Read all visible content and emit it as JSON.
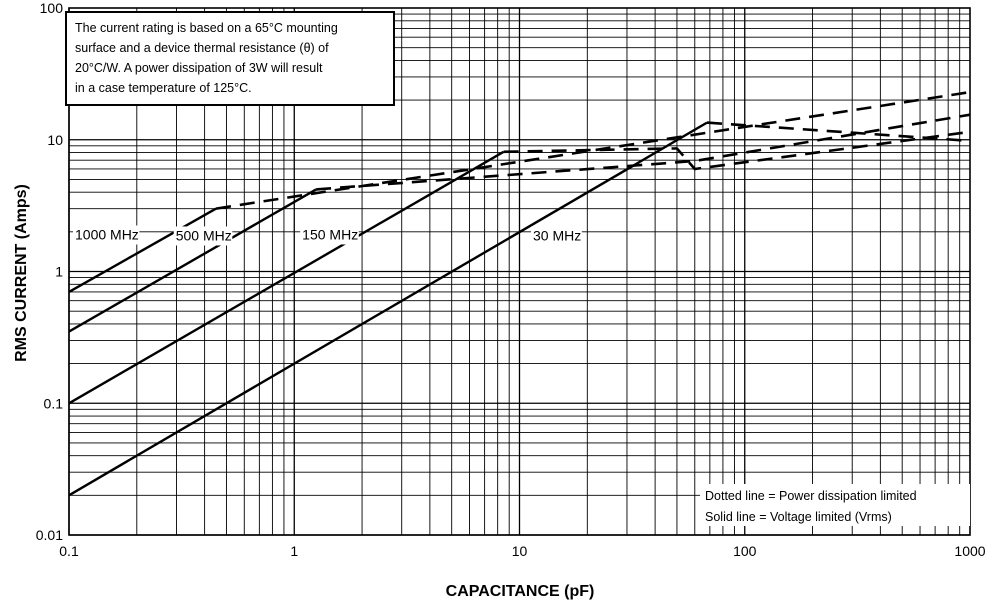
{
  "chart_data": {
    "type": "line",
    "xscale": "log",
    "yscale": "log",
    "xlim": [
      0.1,
      1000
    ],
    "ylim": [
      0.01,
      100
    ],
    "xlabel": "CAPACITANCE (pF)",
    "ylabel": "RMS CURRENT (Amps)",
    "x_tick_labels": [
      "0.1",
      "1",
      "10",
      "100",
      "1000"
    ],
    "y_tick_labels": [
      "0.01",
      "0.1",
      "1",
      "10",
      "100"
    ],
    "x_ticks": [
      0.1,
      1,
      10,
      100,
      1000
    ],
    "y_ticks": [
      0.01,
      0.1,
      1,
      10,
      100
    ],
    "grid": true,
    "annotation_lines": [
      "The current rating is based on a 65°C mounting",
      "surface and a device thermal resistance (θ) of",
      "20°C/W. A power dissipation of 3W will result",
      "in a case temperature of 125°C."
    ],
    "legend_lines": [
      "Dotted line = Power dissipation limited",
      "Solid line = Voltage limited (Vrms)"
    ],
    "series": [
      {
        "name": "1000 MHz",
        "solid": {
          "x": [
            0.1,
            0.45
          ],
          "y": [
            0.7,
            3.0
          ]
        },
        "dashed": {
          "x": [
            0.45,
            1000
          ],
          "y": [
            3.0,
            23.0
          ]
        }
      },
      {
        "name": "500 MHz",
        "solid": {
          "x": [
            0.1,
            1.25
          ],
          "y": [
            0.35,
            4.2
          ]
        },
        "dashed": {
          "x": [
            1.25,
            60,
            1000
          ],
          "y": [
            4.2,
            6.9,
            15.5
          ]
        }
      },
      {
        "name": "150 MHz",
        "solid": {
          "x": [
            0.1,
            8.5
          ],
          "y": [
            0.1,
            8.1
          ]
        },
        "dashed": {
          "x": [
            8.5,
            50,
            60,
            1000
          ],
          "y": [
            8.1,
            8.6,
            6.0,
            11.5
          ]
        }
      },
      {
        "name": "30 MHz",
        "solid": {
          "x": [
            0.1,
            0.45,
            0.6,
            68
          ],
          "y": [
            0.02,
            0.09,
            0.12,
            13.5
          ]
        },
        "dashed": {
          "x": [
            68,
            1000
          ],
          "y": [
            13.5,
            9.8
          ]
        }
      }
    ],
    "series_label_anchor": [
      {
        "x": 0.1,
        "y": 1.75
      },
      {
        "x": 0.28,
        "y": 1.72
      },
      {
        "x": 1.02,
        "y": 1.75
      },
      {
        "x": 10.8,
        "y": 1.72
      }
    ]
  }
}
